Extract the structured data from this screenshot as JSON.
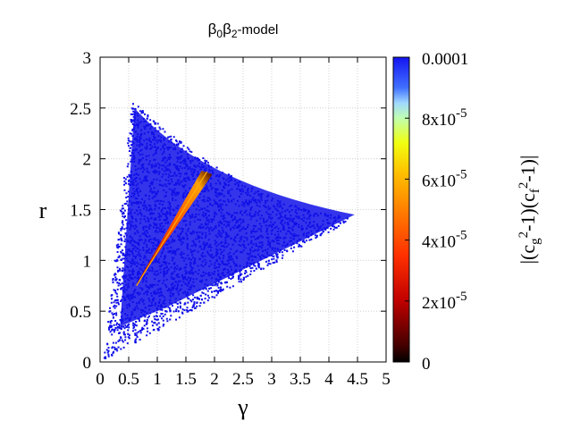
{
  "chart_data": {
    "type": "scatter",
    "title_parts": {
      "b0": "β",
      "s0": "0",
      "b2": "β",
      "s2": "2",
      "suffix": "-model"
    },
    "xlabel": "γ",
    "ylabel": "r",
    "xlim": [
      0,
      5
    ],
    "ylim": [
      0,
      3
    ],
    "xticks": [
      "0",
      "0.5",
      "1",
      "1.5",
      "2",
      "2.5",
      "3",
      "3.5",
      "4",
      "4.5",
      "5"
    ],
    "yticks": [
      "0",
      "0.5",
      "1",
      "1.5",
      "2",
      "2.5",
      "3"
    ],
    "grid": true,
    "point_color": "#1010e8",
    "region_vertices": [
      [
        0.55,
        2.58
      ],
      [
        4.5,
        1.45
      ],
      [
        0.05,
        0.02
      ]
    ],
    "streak": {
      "from": [
        0.62,
        0.75
      ],
      "to": [
        1.9,
        1.9
      ],
      "color": "#ff6a00"
    },
    "colorbar": {
      "range": [
        0,
        0.0001
      ],
      "tick_values": [
        0,
        2e-05,
        4e-05,
        6e-05,
        8e-05,
        0.0001
      ],
      "ticks": [
        {
          "mantissa": "0",
          "exp": ""
        },
        {
          "mantissa": "2x10",
          "exp": "-5"
        },
        {
          "mantissa": "4x10",
          "exp": "-5"
        },
        {
          "mantissa": "6x10",
          "exp": "-5"
        },
        {
          "mantissa": "8x10",
          "exp": "-5"
        },
        {
          "mantissa": "0.0001",
          "exp": ""
        }
      ],
      "label_parts": {
        "a": "|(c",
        "sub_g": "g",
        "sup1": "2",
        "b": "-1)(c",
        "sub_f": "f",
        "sup2": "2",
        "c": "-1)|"
      },
      "colors": [
        "#000000",
        "#ff0000",
        "#ffff00",
        "#2020ff"
      ]
    }
  }
}
